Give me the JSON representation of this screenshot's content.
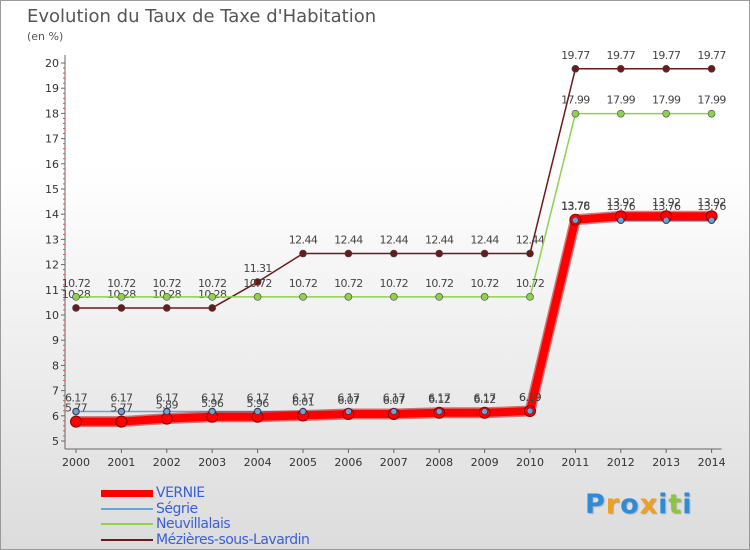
{
  "chart_data": {
    "type": "line",
    "title": "Evolution du Taux de Taxe d'Habitation",
    "subtitle": "(en %)",
    "x": [
      "2000",
      "2001",
      "2002",
      "2003",
      "2004",
      "2005",
      "2006",
      "2007",
      "2008",
      "2009",
      "2010",
      "2011",
      "2012",
      "2013",
      "2014"
    ],
    "ylim": [
      5,
      20
    ],
    "yticks": [
      5,
      6,
      7,
      8,
      9,
      10,
      11,
      12,
      13,
      14,
      15,
      16,
      17,
      18,
      19,
      20
    ],
    "grid": false,
    "legend_position": "bottom-left",
    "series": [
      {
        "name": "Mézières-sous-Lavardin",
        "color": "#6b1a1a",
        "values": [
          10.28,
          10.28,
          10.28,
          10.28,
          11.31,
          12.44,
          12.44,
          12.44,
          12.44,
          12.44,
          12.44,
          19.77,
          19.77,
          19.77,
          19.77
        ],
        "labels": [
          "10.28",
          "10.28",
          "10.28",
          "10.28",
          "11.31",
          "12.44",
          "12.44",
          "12.44",
          "12.44",
          "12.44",
          "12.44",
          "19.77",
          "19.77",
          "19.77",
          "19.77"
        ]
      },
      {
        "name": "Neuvillalais",
        "color": "#8fd14f",
        "values": [
          10.72,
          10.72,
          10.72,
          10.72,
          10.72,
          10.72,
          10.72,
          10.72,
          10.72,
          10.72,
          10.72,
          17.99,
          17.99,
          17.99,
          17.99
        ],
        "labels": [
          "10.72",
          "10.72",
          "10.72",
          "10.72",
          "10.72",
          "10.72",
          "10.72",
          "10.72",
          "10.72",
          "10.72",
          "10.72",
          "17.99",
          "17.99",
          "17.99",
          "17.99"
        ]
      },
      {
        "name": "Ségrie",
        "color": "#6aa3d5",
        "values": [
          6.17,
          6.17,
          6.17,
          6.17,
          6.17,
          6.17,
          6.17,
          6.17,
          6.17,
          6.17,
          6.19,
          13.76,
          13.76,
          13.76,
          13.76
        ],
        "labels": [
          "6.17",
          "6.17",
          "6.17",
          "6.17",
          "6.17",
          "6.17",
          "6.17",
          "6.17",
          "6.17",
          "6.17",
          "6.19",
          "13.76",
          "13.76",
          "13.76",
          "13.76"
        ]
      },
      {
        "name": "VERNIE",
        "color": "#ff0000",
        "values": [
          5.77,
          5.77,
          5.89,
          5.96,
          5.96,
          6.01,
          6.07,
          6.07,
          6.12,
          6.12,
          6.19,
          13.78,
          13.92,
          13.92,
          13.92
        ],
        "labels": [
          "5.77",
          "5.77",
          "5.89",
          "5.96",
          "5.96",
          "6.01",
          "6.07",
          "6.07",
          "6.12",
          "6.12",
          "6.19",
          "13.78",
          "13.92",
          "13.92",
          "13.92"
        ]
      }
    ],
    "legend": [
      {
        "name": "VERNIE",
        "color": "#ff0000",
        "text_color": "#3a5fd9"
      },
      {
        "name": "Ségrie",
        "color": "#6aa3d5",
        "text_color": "#3a5fd9"
      },
      {
        "name": "Neuvillalais",
        "color": "#8fd14f",
        "text_color": "#3a5fd9"
      },
      {
        "name": "Mézières-sous-Lavardin",
        "color": "#6b1a1a",
        "text_color": "#3a5fd9"
      }
    ]
  },
  "logo": {
    "letters": [
      "P",
      "r",
      "o",
      "x",
      "i",
      "t",
      "i"
    ],
    "colors": [
      "#2e8bd8",
      "#f0a020",
      "#2e8bd8",
      "#f0a020",
      "#2e8bd8",
      "#8cc63f",
      "#2e8bd8"
    ]
  }
}
